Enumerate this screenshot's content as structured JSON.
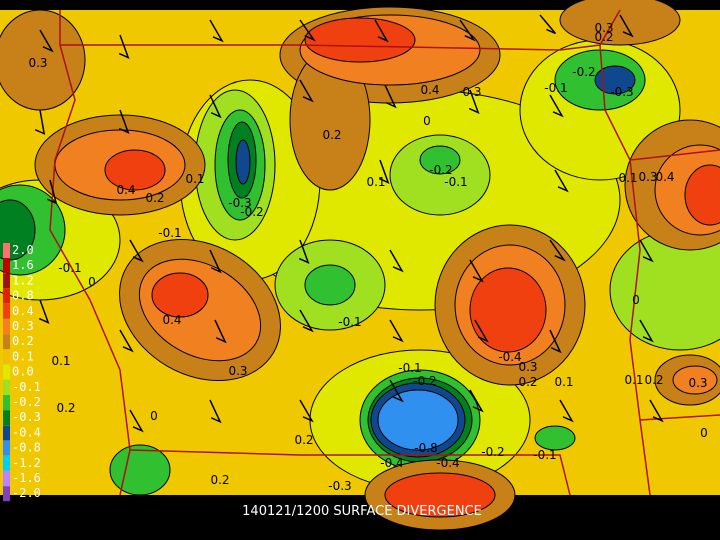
{
  "title": "140121/1200 SURFACE DIVERGENCE",
  "legend": {
    "labels": [
      "2.0",
      "1.6",
      "1.2",
      "0.8",
      "0.4",
      "0.3",
      "0.2",
      "0.1",
      "0.0",
      "-0.1",
      "-0.2",
      "-0.3",
      "-0.4",
      "-0.8",
      "-1.2",
      "-1.6",
      "-2.0"
    ],
    "colors": [
      "#ff7070",
      "#c00000",
      "#a01010",
      "#e02000",
      "#f04010",
      "#f08020",
      "#c88018",
      "#f0c000",
      "#e0e800",
      "#a0e020",
      "#30c030",
      "#008020",
      "#104890",
      "#3090f0",
      "#00d0f0",
      "#c080ff",
      "#8040c0"
    ]
  },
  "contour_labels": [
    "0.3",
    "0.4",
    "0.3",
    "0.2",
    "0",
    "0.3",
    "0.2",
    "-0.2",
    "-0.1",
    "-0.3",
    "0.4",
    "0.2",
    "0.1",
    "-0.3",
    "-0.2",
    "0.1",
    "-0.2",
    "-0.1",
    "0.1",
    "0.3",
    "0.4",
    "-0.1",
    "-0.1",
    "0",
    "0.4",
    "0.3",
    "0.1",
    "0.2",
    "0",
    "0.2",
    "-0.1",
    "-0.1",
    "-0.2",
    "-0.4",
    "0.3",
    "0.2",
    "0.1",
    "0.1",
    "0.2",
    "0.3",
    "0",
    "0",
    "0.2",
    "-0.3",
    "-0.4",
    "-0.8",
    "-0.4",
    "-0.2",
    "-0.1"
  ]
}
